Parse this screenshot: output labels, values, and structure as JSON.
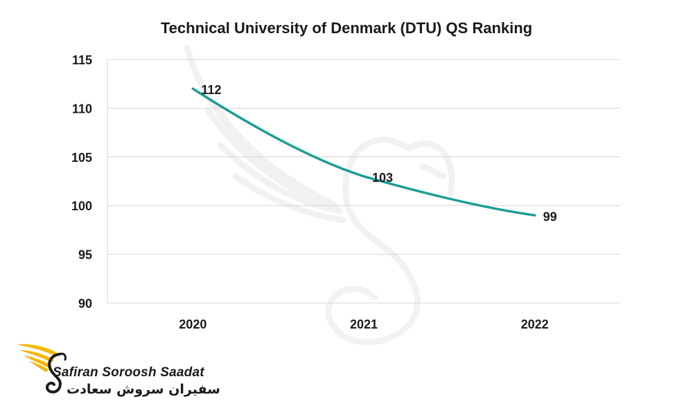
{
  "chart_data": {
    "type": "line",
    "title": "Technical University of Denmark (DTU) QS Ranking",
    "categories": [
      "2020",
      "2021",
      "2022"
    ],
    "series": [
      {
        "values": [
          112,
          103,
          99
        ],
        "color": "#1a9e94"
      }
    ],
    "yticks": [
      "115",
      "110",
      "105",
      "100",
      "95",
      "90"
    ],
    "ylim": [
      90,
      115
    ],
    "grid": true,
    "data_labels": true
  },
  "watermark": {
    "icon": "swan-wing-icon"
  },
  "logo": {
    "icon": "golden-wing-swan-icon",
    "text_en": "Safiran Soroosh Saadat",
    "text_fa": "سفیران سروش سعادت",
    "accent_color": "#f2b705"
  }
}
